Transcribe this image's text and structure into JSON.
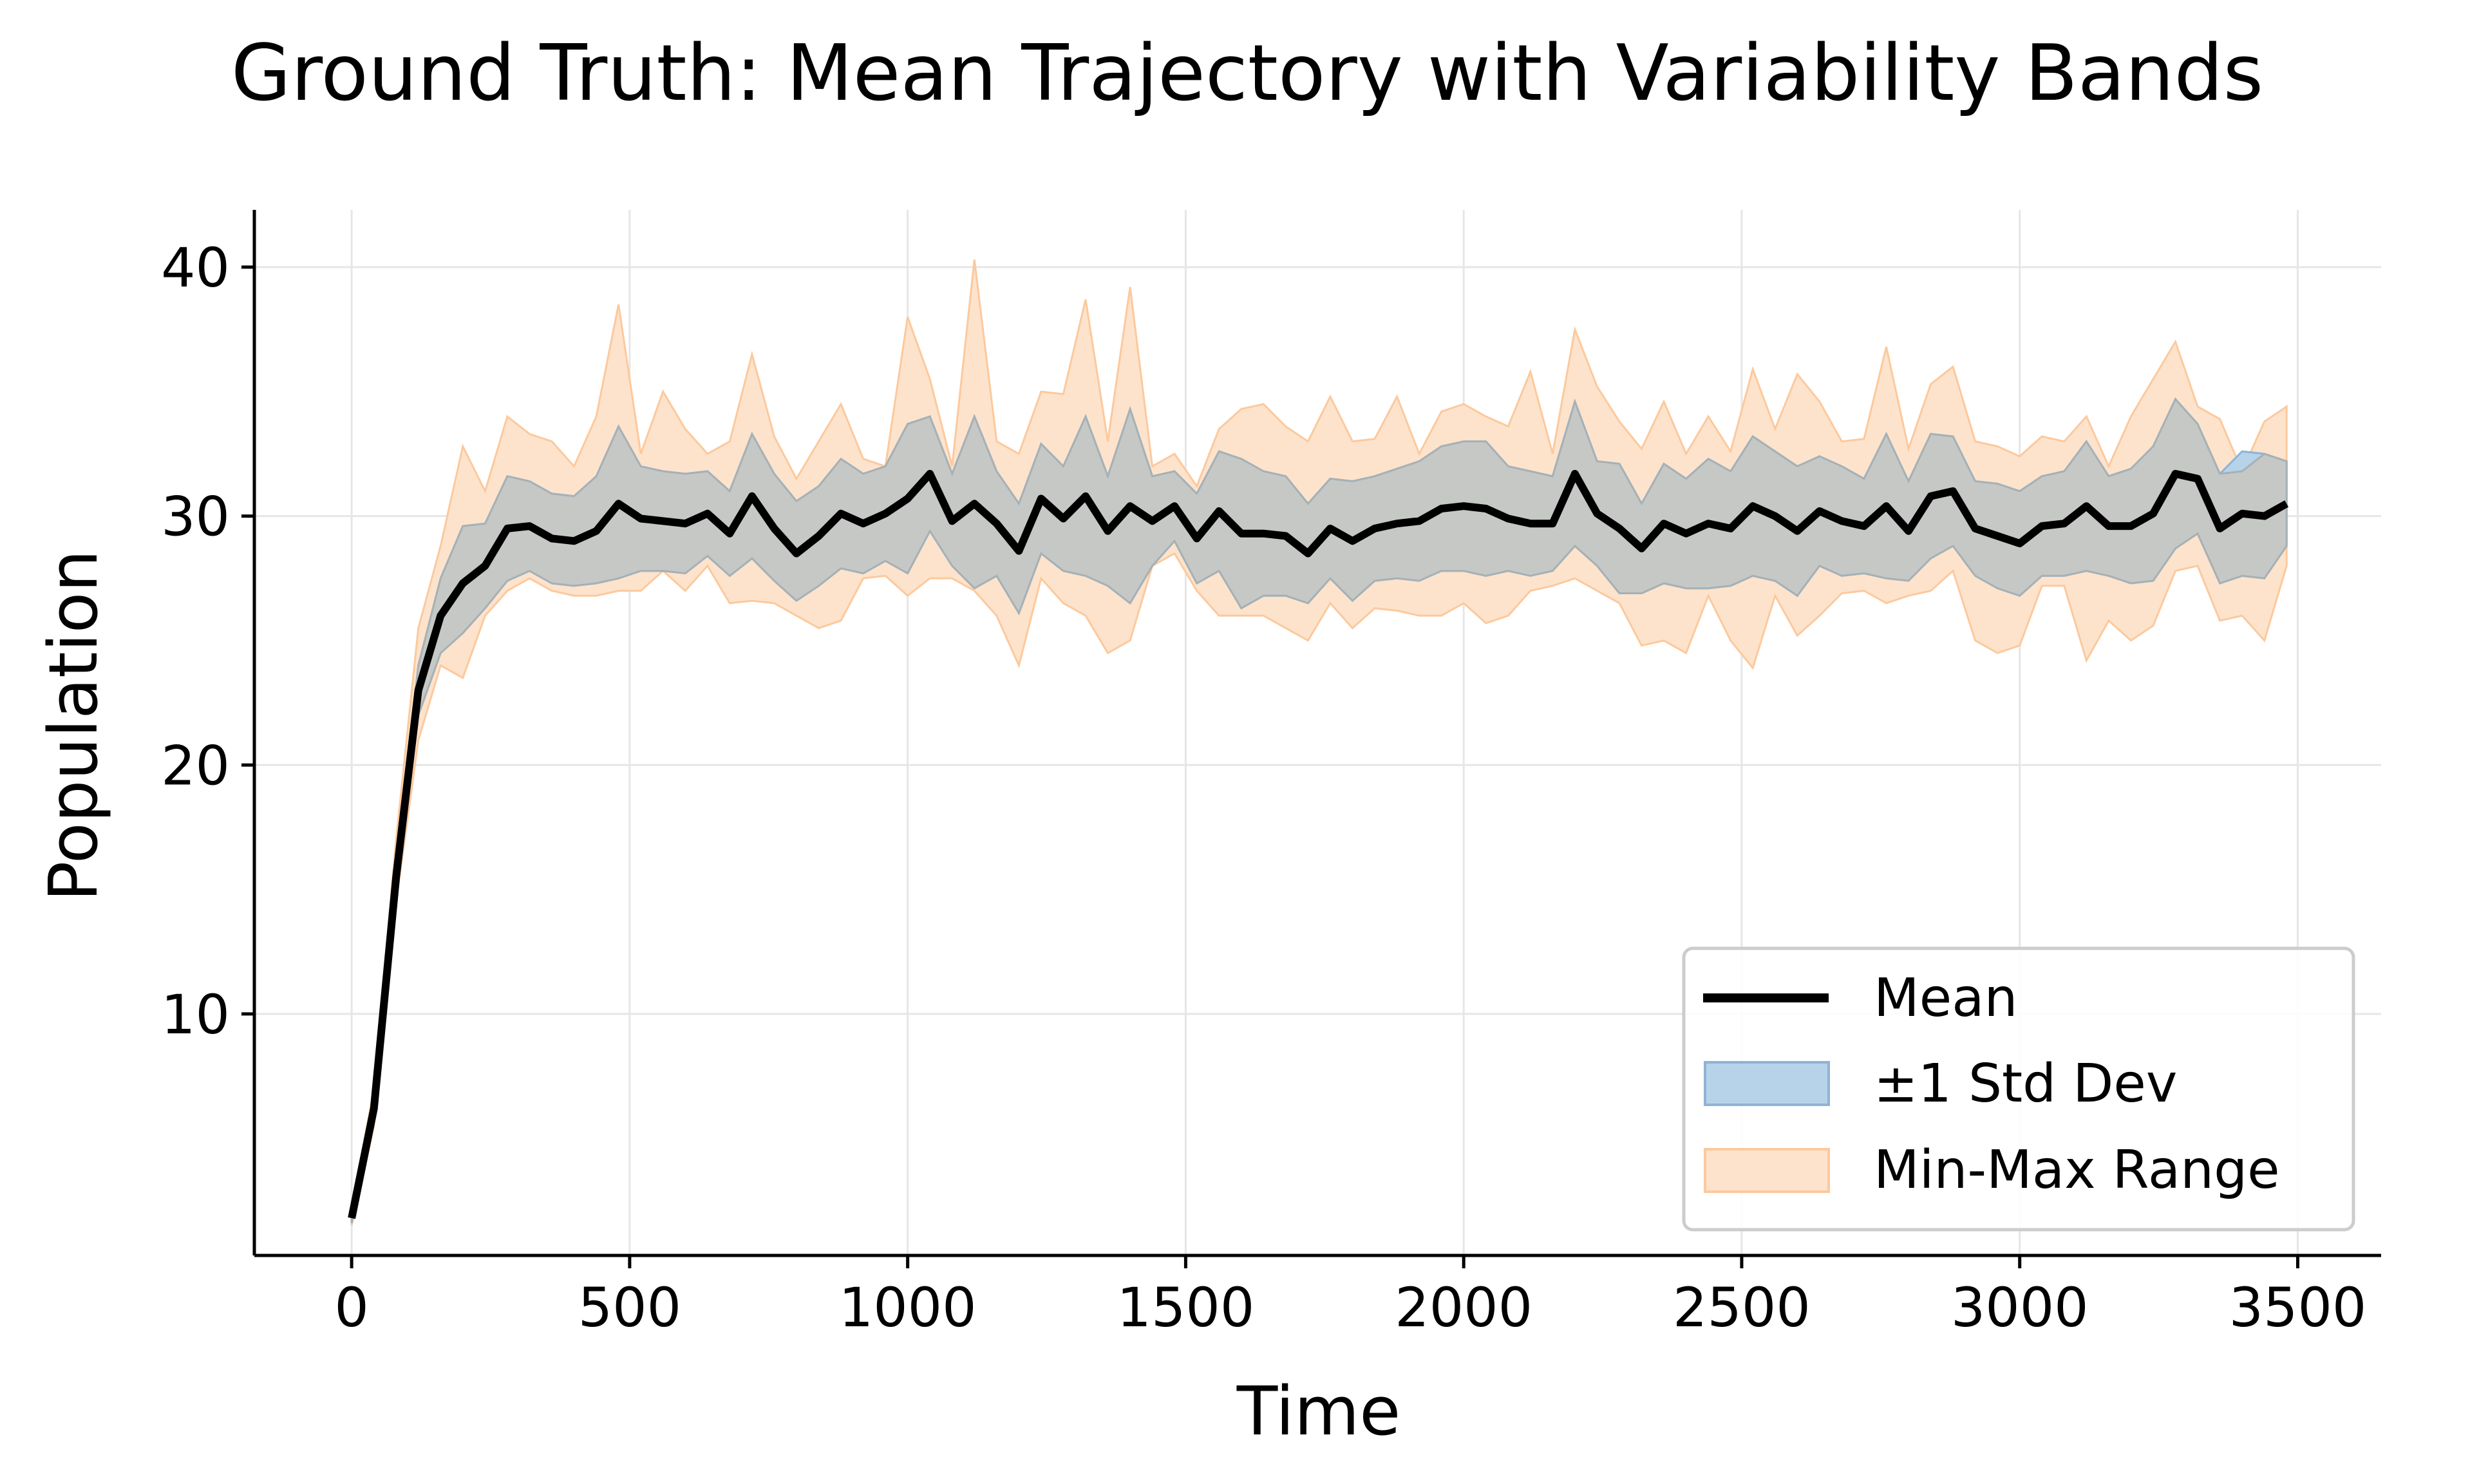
{
  "chart_data": {
    "type": "line",
    "title": "Ground Truth: Mean Trajectory with Variability Bands",
    "xlabel": "Time",
    "ylabel": "Population",
    "xlim": [
      -175,
      3650
    ],
    "ylim": [
      0.3,
      42.3
    ],
    "xticks": [
      0,
      500,
      1000,
      1500,
      2000,
      2500,
      3000,
      3500
    ],
    "yticks": [
      10,
      20,
      30,
      40
    ],
    "grid": true,
    "legend_position": "lower-right",
    "colors": {
      "mean": "#000000",
      "std_fill": "#b7d3ea",
      "std_edge": "#8fb3d3",
      "range_fill": "#fde3cc",
      "range_edge": "#fcc99d",
      "overlap": "#c6c8c6"
    },
    "legend": [
      {
        "label": "Mean",
        "kind": "line"
      },
      {
        "label": "±1 Std Dev",
        "kind": "std"
      },
      {
        "label": "Min-Max Range",
        "kind": "range"
      }
    ],
    "x": [
      0,
      40,
      80,
      120,
      160,
      200,
      240,
      280,
      320,
      360,
      400,
      440,
      480,
      520,
      560,
      600,
      640,
      680,
      720,
      760,
      800,
      840,
      880,
      920,
      960,
      1000,
      1040,
      1080,
      1120,
      1160,
      1200,
      1240,
      1280,
      1320,
      1360,
      1400,
      1440,
      1480,
      1520,
      1560,
      1600,
      1640,
      1680,
      1720,
      1760,
      1800,
      1840,
      1880,
      1920,
      1960,
      2000,
      2040,
      2080,
      2120,
      2160,
      2200,
      2240,
      2280,
      2320,
      2360,
      2400,
      2440,
      2480,
      2520,
      2560,
      2600,
      2640,
      2680,
      2720,
      2760,
      2800,
      2840,
      2880,
      2920,
      2960,
      3000,
      3040,
      3080,
      3120,
      3160,
      3200,
      3240,
      3280,
      3320,
      3360,
      3400,
      3440,
      3480
    ],
    "series": [
      {
        "name": "Mean",
        "role": "mean",
        "values": [
          1.8,
          6.2,
          15.5,
          23.0,
          26.0,
          27.3,
          28.0,
          29.5,
          29.6,
          29.1,
          29.0,
          29.4,
          30.5,
          29.9,
          29.8,
          29.7,
          30.1,
          29.3,
          30.8,
          29.5,
          28.5,
          29.2,
          30.1,
          29.7,
          30.1,
          30.7,
          31.7,
          29.8,
          30.5,
          29.7,
          28.6,
          30.7,
          29.9,
          30.8,
          29.4,
          30.4,
          29.8,
          30.4,
          29.1,
          30.2,
          29.3,
          29.3,
          29.2,
          28.5,
          29.5,
          29.0,
          29.5,
          29.7,
          29.8,
          30.3,
          30.4,
          30.3,
          29.9,
          29.7,
          29.7,
          31.7,
          30.1,
          29.5,
          28.7,
          29.7,
          29.3,
          29.7,
          29.5,
          30.4,
          30.0,
          29.4,
          30.2,
          29.8,
          29.6,
          30.4,
          29.4,
          30.8,
          31.0,
          29.5,
          29.2,
          28.9,
          29.6,
          29.7,
          30.4,
          29.6,
          29.6,
          30.1,
          31.7,
          31.5,
          29.5,
          30.1,
          30.0,
          30.5
        ]
      },
      {
        "name": "±1 Std Dev (upper)",
        "role": "std_upper",
        "values": [
          2.0,
          6.6,
          16.2,
          24.0,
          27.5,
          29.6,
          29.7,
          31.6,
          31.4,
          30.9,
          30.8,
          31.6,
          33.6,
          32.0,
          31.8,
          31.7,
          31.8,
          31.0,
          33.3,
          31.7,
          30.6,
          31.2,
          32.3,
          31.7,
          32.0,
          33.7,
          34.0,
          31.7,
          34.0,
          31.8,
          30.5,
          32.9,
          32.0,
          34.0,
          31.6,
          34.3,
          31.6,
          31.8,
          30.9,
          32.6,
          32.3,
          31.8,
          31.6,
          30.5,
          31.5,
          31.4,
          31.6,
          31.9,
          32.2,
          32.8,
          33.0,
          33.0,
          32.0,
          31.8,
          31.6,
          34.6,
          32.2,
          32.1,
          30.5,
          32.1,
          31.5,
          32.3,
          31.8,
          33.2,
          32.6,
          32.0,
          32.4,
          32.0,
          31.5,
          33.3,
          31.4,
          33.3,
          33.2,
          31.4,
          31.3,
          31.0,
          31.6,
          31.8,
          33.0,
          31.6,
          31.9,
          32.8,
          34.7,
          33.7,
          31.7,
          32.6,
          32.5,
          32.2
        ]
      },
      {
        "name": "±1 Std Dev (lower)",
        "role": "std_lower",
        "values": [
          1.6,
          5.8,
          14.8,
          22.0,
          24.5,
          25.3,
          26.3,
          27.4,
          27.8,
          27.3,
          27.2,
          27.3,
          27.5,
          27.8,
          27.8,
          27.7,
          28.4,
          27.6,
          28.3,
          27.4,
          26.6,
          27.2,
          27.9,
          27.7,
          28.2,
          27.7,
          29.4,
          28.0,
          27.1,
          27.6,
          26.1,
          28.5,
          27.8,
          27.6,
          27.2,
          26.5,
          28.0,
          29.0,
          27.3,
          27.8,
          26.3,
          26.8,
          26.8,
          26.5,
          27.5,
          26.6,
          27.4,
          27.5,
          27.4,
          27.8,
          27.8,
          27.6,
          27.8,
          27.6,
          27.8,
          28.8,
          28.0,
          26.9,
          26.9,
          27.3,
          27.1,
          27.1,
          27.2,
          27.6,
          27.4,
          26.8,
          28.0,
          27.6,
          27.7,
          27.5,
          27.4,
          28.3,
          28.8,
          27.6,
          27.1,
          26.8,
          27.6,
          27.6,
          27.8,
          27.6,
          27.3,
          27.4,
          28.7,
          29.3,
          27.3,
          27.6,
          27.5,
          28.8
        ]
      },
      {
        "name": "Min-Max Range (upper)",
        "role": "range_upper",
        "values": [
          2.1,
          7.0,
          17.0,
          25.5,
          28.8,
          32.8,
          31.0,
          34.0,
          33.3,
          33.0,
          32.0,
          34.0,
          38.5,
          32.5,
          35.0,
          33.5,
          32.5,
          33.0,
          36.5,
          33.2,
          31.5,
          33.0,
          34.5,
          32.3,
          32.0,
          38.0,
          35.5,
          32.0,
          40.3,
          33.0,
          32.5,
          35.0,
          34.9,
          38.7,
          33.0,
          39.2,
          32.0,
          32.5,
          31.2,
          33.5,
          34.3,
          34.5,
          33.6,
          33.0,
          34.8,
          33.0,
          33.1,
          34.8,
          32.5,
          34.2,
          34.5,
          34.0,
          33.6,
          35.8,
          32.5,
          37.5,
          35.2,
          33.8,
          32.7,
          34.6,
          32.5,
          34.0,
          32.6,
          35.9,
          33.5,
          35.7,
          34.6,
          33.0,
          33.1,
          36.8,
          32.7,
          35.3,
          36.0,
          33.0,
          32.8,
          32.4,
          33.2,
          33.0,
          34.0,
          32.0,
          34.0,
          35.5,
          37.0,
          34.4,
          33.9,
          31.8,
          33.8,
          34.4
        ]
      },
      {
        "name": "Min-Max Range (lower)",
        "role": "range_lower",
        "values": [
          1.5,
          5.5,
          14.5,
          21.0,
          24.0,
          23.5,
          26.0,
          27.0,
          27.5,
          27.0,
          26.8,
          26.8,
          27.0,
          27.0,
          27.8,
          27.0,
          28.0,
          26.5,
          26.6,
          26.5,
          26.0,
          25.5,
          25.8,
          27.5,
          27.6,
          26.8,
          27.5,
          27.5,
          27.0,
          26.0,
          24.0,
          27.5,
          26.5,
          26.0,
          24.5,
          25.0,
          28.0,
          28.5,
          27.0,
          26.0,
          26.0,
          26.0,
          25.5,
          25.0,
          26.5,
          25.5,
          26.3,
          26.2,
          26.0,
          26.0,
          26.5,
          25.7,
          26.0,
          27.0,
          27.2,
          27.5,
          27.0,
          26.5,
          24.8,
          25.0,
          24.5,
          26.8,
          25.0,
          23.9,
          26.8,
          25.2,
          26.0,
          26.9,
          27.0,
          26.5,
          26.8,
          27.0,
          27.8,
          25.0,
          24.5,
          24.8,
          27.2,
          27.2,
          24.2,
          25.8,
          25.0,
          25.6,
          27.8,
          28.0,
          25.8,
          26.0,
          25.0,
          28.0
        ]
      }
    ]
  }
}
